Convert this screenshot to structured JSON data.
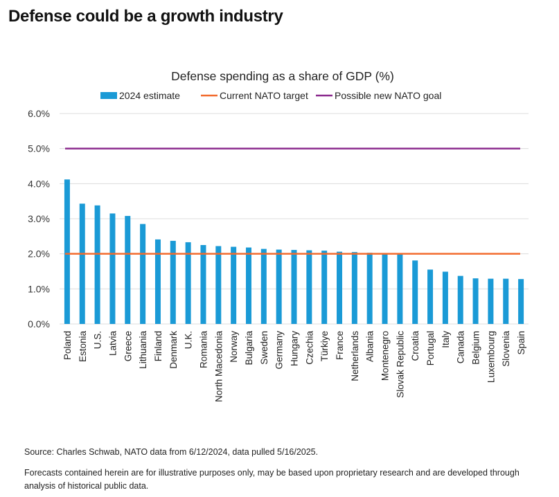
{
  "headline": "Defense could be a growth industry",
  "source": "Source: Charles Schwab, NATO data from 6/12/2024, data pulled 5/16/2025.",
  "disclaimer": "Forecasts contained herein are for illustrative purposes only, may be based upon proprietary research and are developed through analysis of historical public data.",
  "chart_data": {
    "type": "bar",
    "title": "Defense spending as a share of GDP (%)",
    "xlabel": "",
    "ylabel": "",
    "ylim": [
      0,
      6
    ],
    "yticks": [
      "0.0%",
      "1.0%",
      "2.0%",
      "3.0%",
      "4.0%",
      "5.0%",
      "6.0%"
    ],
    "grid": true,
    "legend_position": "top",
    "categories": [
      "Poland",
      "Estonia",
      "U.S.",
      "Latvia",
      "Greece",
      "Lithuania",
      "Finland",
      "Denmark",
      "U.K.",
      "Romania",
      "North Macedonia",
      "Norway",
      "Bulgaria",
      "Sweden",
      "Germany",
      "Hungary",
      "Czechia",
      "Türkiye",
      "France",
      "Netherlands",
      "Albania",
      "Montenegro",
      "Slovak Republic",
      "Croatia",
      "Portugal",
      "Italy",
      "Canada",
      "Belgium",
      "Luxembourg",
      "Slovenia",
      "Spain"
    ],
    "series": [
      {
        "name": "2024 estimate",
        "kind": "bar",
        "color": "#1a9ad6",
        "values": [
          4.12,
          3.43,
          3.38,
          3.15,
          3.08,
          2.85,
          2.41,
          2.37,
          2.33,
          2.25,
          2.22,
          2.2,
          2.18,
          2.14,
          2.12,
          2.11,
          2.1,
          2.09,
          2.06,
          2.05,
          2.03,
          2.0,
          2.0,
          1.81,
          1.55,
          1.49,
          1.37,
          1.3,
          1.29,
          1.29,
          1.28
        ]
      },
      {
        "name": "Current NATO target",
        "kind": "line",
        "color": "#f26b2d",
        "value": 2.0
      },
      {
        "name": "Possible new NATO goal",
        "kind": "line",
        "color": "#8b2a8e",
        "value": 5.0
      }
    ],
    "colors": {
      "grid": "#dcdcdc",
      "axis_text": "#333333"
    }
  }
}
